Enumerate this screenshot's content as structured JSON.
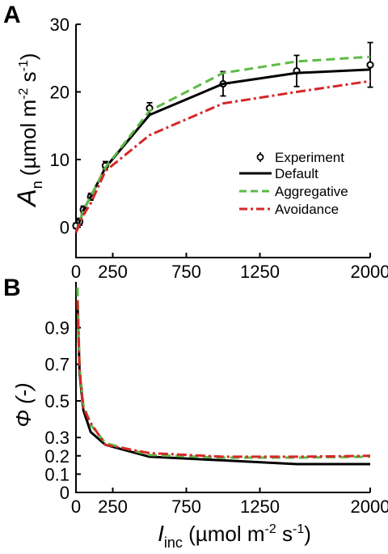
{
  "chart_data": [
    {
      "panel": "A",
      "type": "line",
      "ylabel_symbol": "A",
      "ylabel_sub": "n",
      "ylabel_unit": "(µmol m",
      "ylabel_exp1": "-2",
      "ylabel_mid": " s",
      "ylabel_exp2": "-1",
      "ylabel_close": ")",
      "xlim": [
        0,
        2000
      ],
      "ylim": [
        -4.5,
        30
      ],
      "xticks": [
        0,
        250,
        750,
        1250,
        2000
      ],
      "yticks": [
        0,
        10,
        20,
        30
      ],
      "legend_position": "bottom-right",
      "series": [
        {
          "name": "Experiment",
          "style": "markers-errorbars",
          "color": "#000000",
          "x": [
            0,
            25,
            50,
            100,
            200,
            500,
            1000,
            1500,
            2000
          ],
          "y": [
            0.2,
            0.8,
            2.6,
            4.5,
            9.1,
            17.6,
            21.2,
            23.1,
            24.0
          ],
          "err": [
            0.4,
            0.5,
            0.5,
            0.5,
            0.6,
            0.8,
            1.8,
            2.3,
            3.3
          ]
        },
        {
          "name": "Default",
          "style": "solid",
          "color": "#000000",
          "x": [
            0,
            50,
            100,
            200,
            500,
            1000,
            1500,
            2000
          ],
          "y": [
            -0.8,
            2.5,
            4.5,
            8.8,
            16.6,
            21.2,
            22.8,
            23.3
          ]
        },
        {
          "name": "Aggregative",
          "style": "dashed",
          "color": "#5dbb46",
          "x": [
            0,
            50,
            100,
            200,
            500,
            1000,
            1500,
            2000
          ],
          "y": [
            -0.8,
            2.5,
            4.5,
            8.8,
            17.2,
            22.8,
            24.5,
            25.2
          ]
        },
        {
          "name": "Avoidance",
          "style": "dashdot",
          "color": "#d62728",
          "x": [
            0,
            50,
            100,
            200,
            500,
            1000,
            1500,
            2000
          ],
          "y": [
            -0.8,
            1.8,
            3.5,
            8.3,
            13.6,
            18.3,
            20.0,
            21.6
          ]
        }
      ]
    },
    {
      "panel": "B",
      "type": "line",
      "ylabel": "Φ (-)",
      "xlabel_symbol": "I",
      "xlabel_sub": "inc",
      "xlabel_unit": " (µmol m",
      "xlabel_exp1": "-2",
      "xlabel_mid": " s",
      "xlabel_exp2": "-1",
      "xlabel_close": ")",
      "xlim": [
        0,
        2000
      ],
      "ylim": [
        0,
        1.15
      ],
      "xticks": [
        0,
        250,
        750,
        1250,
        2000
      ],
      "yticks": [
        0,
        0.1,
        0.2,
        0.3,
        0.5,
        0.7,
        0.9
      ],
      "series": [
        {
          "name": "Default",
          "style": "solid",
          "color": "#000000",
          "x": [
            10,
            25,
            50,
            100,
            200,
            500,
            1000,
            1500,
            2000
          ],
          "y": [
            1.05,
            0.65,
            0.45,
            0.33,
            0.26,
            0.195,
            0.175,
            0.155,
            0.155
          ]
        },
        {
          "name": "Aggregative",
          "style": "dashed",
          "color": "#5dbb46",
          "x": [
            10,
            25,
            50,
            100,
            200,
            500,
            1000,
            1500,
            2000
          ],
          "y": [
            1.12,
            0.68,
            0.48,
            0.37,
            0.27,
            0.205,
            0.19,
            0.19,
            0.195
          ]
        },
        {
          "name": "Avoidance",
          "style": "dashdot",
          "color": "#d62728",
          "x": [
            10,
            25,
            50,
            100,
            200,
            500,
            1000,
            1500,
            2000
          ],
          "y": [
            1.05,
            0.66,
            0.46,
            0.38,
            0.26,
            0.215,
            0.195,
            0.195,
            0.2
          ]
        }
      ]
    }
  ]
}
